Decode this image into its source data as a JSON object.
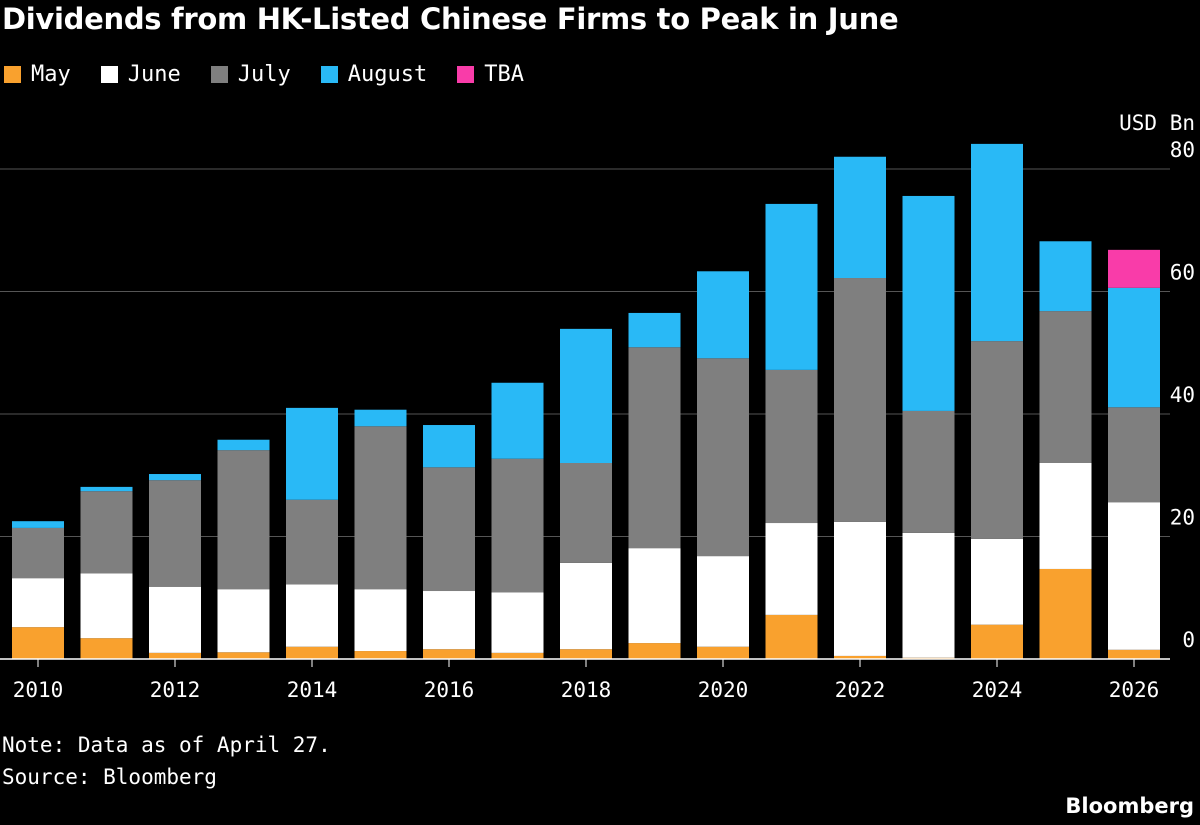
{
  "chart_data": {
    "type": "bar",
    "stacked": true,
    "title": "Dividends from HK-Listed Chinese Firms to Peak in June",
    "ylabel": "USD Bn",
    "ylim": [
      0,
      80
    ],
    "yticks": [
      0,
      20,
      40,
      60,
      80
    ],
    "grid": true,
    "legend_position": "top-left",
    "categories": [
      "2010",
      "2011",
      "2012",
      "2013",
      "2014",
      "2015",
      "2016",
      "2017",
      "2018",
      "2019",
      "2020",
      "2021",
      "2022",
      "2023",
      "2024",
      "2025",
      "2026"
    ],
    "xtick_labels": [
      "2010",
      "2012",
      "2014",
      "2016",
      "2018",
      "2020",
      "2022",
      "2024",
      "2026"
    ],
    "series": [
      {
        "name": "May",
        "color": "#f9a12e",
        "values": [
          5.2,
          3.4,
          1.0,
          1.1,
          2.0,
          1.3,
          1.6,
          1.0,
          1.6,
          2.6,
          2.0,
          7.2,
          0.5,
          0.2,
          5.6,
          14.7,
          1.5
        ]
      },
      {
        "name": "June",
        "color": "#ffffff",
        "values": [
          8.0,
          10.6,
          10.8,
          10.3,
          10.2,
          10.1,
          9.5,
          9.9,
          14.1,
          15.5,
          14.8,
          15.0,
          21.9,
          20.4,
          14.0,
          17.3,
          24.1
        ]
      },
      {
        "name": "July",
        "color": "#7f7f7f",
        "values": [
          8.2,
          13.4,
          17.4,
          22.7,
          13.8,
          26.6,
          20.2,
          21.8,
          16.3,
          32.8,
          32.3,
          25.0,
          39.8,
          19.9,
          32.3,
          24.8,
          15.5
        ]
      },
      {
        "name": "August",
        "color": "#29b9f6",
        "values": [
          1.1,
          0.7,
          1.0,
          1.7,
          15.0,
          2.7,
          6.9,
          12.4,
          21.9,
          5.6,
          14.2,
          27.1,
          19.8,
          35.1,
          32.2,
          11.4,
          19.5
        ]
      },
      {
        "name": "TBA",
        "color": "#f93ca9",
        "values": [
          0,
          0,
          0,
          0,
          0,
          0,
          0,
          0,
          0,
          0,
          0,
          0,
          0,
          0,
          0,
          0,
          6.2
        ]
      }
    ]
  },
  "note": "Note: Data as of April 27.",
  "source": "Source: Bloomberg",
  "brand": "Bloomberg"
}
